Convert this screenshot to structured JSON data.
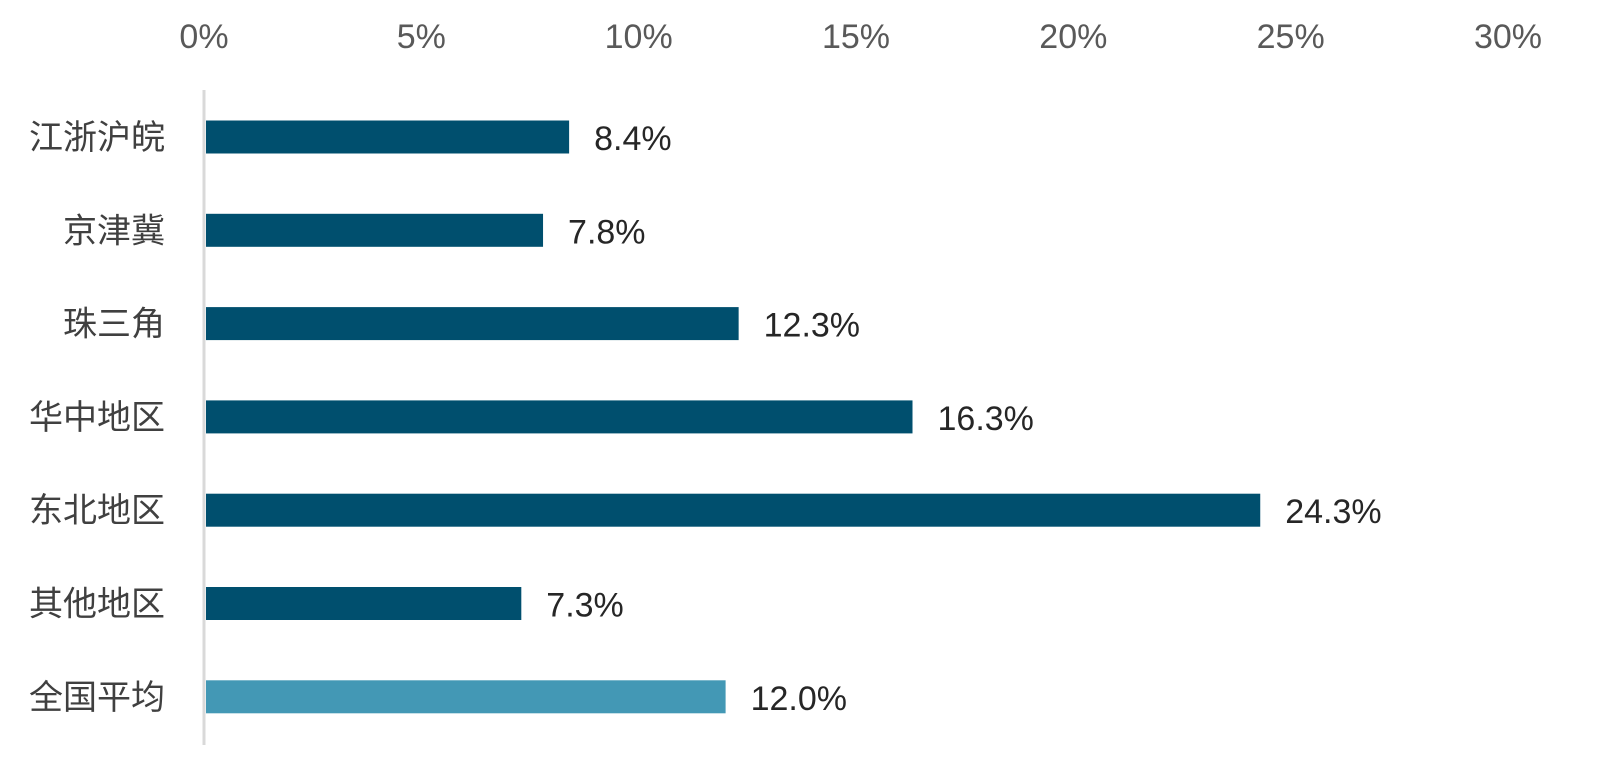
{
  "chart_data": {
    "type": "bar",
    "orientation": "horizontal",
    "categories": [
      "江浙沪皖",
      "京津冀",
      "珠三角",
      "华中地区",
      "东北地区",
      "其他地区",
      "全国平均"
    ],
    "values": [
      8.4,
      7.8,
      12.3,
      16.3,
      24.3,
      7.3,
      12.0
    ],
    "data_labels": [
      "8.4%",
      "7.8%",
      "12.3%",
      "16.3%",
      "24.3%",
      "7.3%",
      "12.0%"
    ],
    "xlim": [
      0,
      30
    ],
    "x_ticks": [
      0,
      5,
      10,
      15,
      20,
      25,
      30
    ],
    "x_tick_labels": [
      "0%",
      "5%",
      "10%",
      "15%",
      "20%",
      "25%",
      "30%"
    ],
    "x_axis_position": "top",
    "grid": false,
    "legend": "none",
    "colors": {
      "bar": "#004f6e",
      "highlight_bar": "#4398b5",
      "axis_line": "#d9d9d9"
    },
    "highlight_index": 6
  }
}
